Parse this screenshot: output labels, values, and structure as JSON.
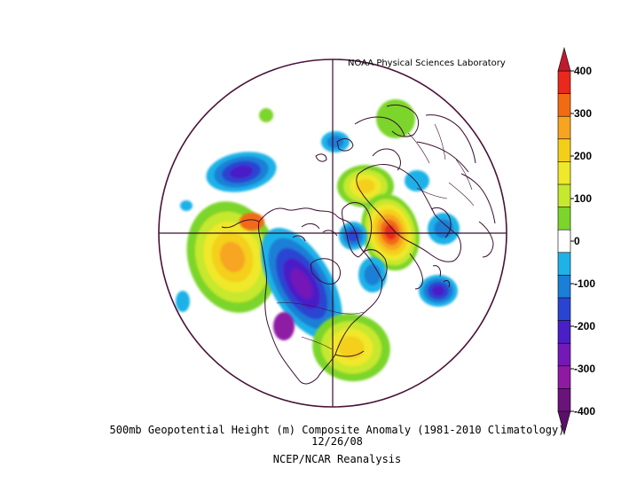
{
  "credit": "NOAA Physical Sciences Laboratory",
  "title_line1": "500mb Geopotential Height (m) Composite Anomaly (1981-2010 Climatology)",
  "title_line2": "12/26/08",
  "title_line3": "NCEP/NCAR Reanalysis",
  "map": {
    "projection": "north polar stereographic",
    "variable": "500mb geopotential height anomaly",
    "units": "m",
    "colors": {
      "boundary": "#4a1239",
      "coast": "#3a0f30",
      "background": "#ffffff"
    },
    "anomaly_centers": [
      {
        "region": "Northeast Pacific / Gulf of Alaska",
        "sign": "positive",
        "max_level": 300
      },
      {
        "region": "Western North America",
        "sign": "negative",
        "max_level": -300
      },
      {
        "region": "Eastern United States",
        "sign": "positive",
        "max_level": 200
      },
      {
        "region": "Northwest Atlantic / Labrador Sea",
        "sign": "negative",
        "max_level": -200
      },
      {
        "region": "Greenland / North Atlantic",
        "sign": "negative",
        "max_level": -100
      },
      {
        "region": "Scandinavia / Northern Europe",
        "sign": "positive",
        "max_level": 100
      },
      {
        "region": "Siberia / Central Asia",
        "sign": "positive",
        "max_level": 400
      },
      {
        "region": "East Asia",
        "sign": "negative",
        "max_level": -200
      },
      {
        "region": "Western Pacific",
        "sign": "negative",
        "max_level": -100
      }
    ]
  },
  "colorbar": {
    "levels": [
      400,
      300,
      200,
      100,
      0,
      -100,
      -200,
      -300,
      -400
    ],
    "bins": [
      {
        "from": 350,
        "to": 400,
        "color": "#e8291c"
      },
      {
        "from": 300,
        "to": 350,
        "color": "#f26b12"
      },
      {
        "from": 250,
        "to": 300,
        "color": "#f7a520"
      },
      {
        "from": 200,
        "to": 250,
        "color": "#f4cf1a"
      },
      {
        "from": 150,
        "to": 200,
        "color": "#f0e82a"
      },
      {
        "from": 100,
        "to": 150,
        "color": "#c6e82d"
      },
      {
        "from": 50,
        "to": 100,
        "color": "#7cd52a"
      },
      {
        "from": -50,
        "to": 50,
        "color": "#ffffff"
      },
      {
        "from": -100,
        "to": -50,
        "color": "#1fb2e8"
      },
      {
        "from": -150,
        "to": -100,
        "color": "#1a7fd6"
      },
      {
        "from": -200,
        "to": -150,
        "color": "#2a44d2"
      },
      {
        "from": -250,
        "to": -200,
        "color": "#4a1fc8"
      },
      {
        "from": -300,
        "to": -250,
        "color": "#7419b8"
      },
      {
        "from": -350,
        "to": -300,
        "color": "#8e1aa4"
      },
      {
        "from": -400,
        "to": -350,
        "color": "#6a137a"
      }
    ],
    "arrow_top_color": "#c21a2d",
    "arrow_bottom_color": "#5a1068"
  }
}
